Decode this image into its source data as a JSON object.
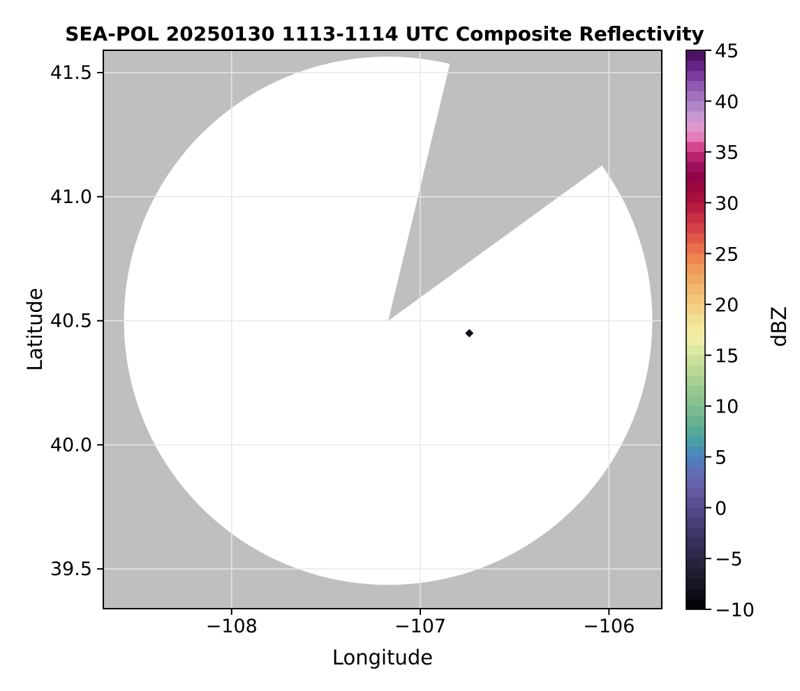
{
  "chart_data": {
    "type": "heatmap",
    "title": "SEA-POL 20250130 1113-1114 UTC Composite Reflectivity",
    "xlabel": "Longitude",
    "ylabel": "Latitude",
    "colorbar_label": "dBZ",
    "xlim": [
      -108.68,
      -105.72
    ],
    "ylim": [
      39.34,
      41.59
    ],
    "grid": true,
    "xticks": [
      {
        "value": -108,
        "label": "−108"
      },
      {
        "value": -107,
        "label": "−107"
      },
      {
        "value": -106,
        "label": "−106"
      }
    ],
    "yticks": [
      {
        "value": 41.5,
        "label": "41.5"
      },
      {
        "value": 41.0,
        "label": "41.0"
      },
      {
        "value": 40.5,
        "label": "40.5"
      },
      {
        "value": 40.0,
        "label": "40.0"
      },
      {
        "value": 39.5,
        "label": "39.5"
      }
    ],
    "colorbar_range": [
      -10,
      45
    ],
    "colorbar_ticks": [
      {
        "value": 45,
        "label": "45"
      },
      {
        "value": 40,
        "label": "40"
      },
      {
        "value": 35,
        "label": "35"
      },
      {
        "value": 30,
        "label": "30"
      },
      {
        "value": 25,
        "label": "25"
      },
      {
        "value": 20,
        "label": "20"
      },
      {
        "value": 15,
        "label": "15"
      },
      {
        "value": 10,
        "label": "10"
      },
      {
        "value": 5,
        "label": "5"
      },
      {
        "value": 0,
        "label": "0"
      },
      {
        "value": -5,
        "label": "−5"
      },
      {
        "value": -10,
        "label": "−10"
      }
    ],
    "radar": {
      "name": "SEA-POL",
      "center_lon": -107.17,
      "center_lat": 40.5,
      "range_deg_lon": 1.4,
      "no_data_sector_azimuth_deg": [
        13.5,
        54
      ]
    },
    "echoes": [
      {
        "lon": -106.74,
        "lat": 40.45,
        "dbz": -9
      }
    ],
    "colors": {
      "no_data_gray": "#bfbfbf",
      "coverage_white": "#ffffff",
      "gridline": "#e7e7e7",
      "spine": "#000000"
    },
    "colormap_name": "spectral-chase-style",
    "colormap_stops": [
      [
        -10,
        "#000000"
      ],
      [
        -9,
        "#0b0812"
      ],
      [
        -8,
        "#140f1e"
      ],
      [
        -7,
        "#1d1829"
      ],
      [
        -6,
        "#251f38"
      ],
      [
        -5,
        "#2c2545"
      ],
      [
        -4,
        "#342c55"
      ],
      [
        -3,
        "#3b3263"
      ],
      [
        -2,
        "#423a6e"
      ],
      [
        -1,
        "#4b4280"
      ],
      [
        0,
        "#544a8c"
      ],
      [
        1,
        "#5e5399"
      ],
      [
        2,
        "#655ea7"
      ],
      [
        3,
        "#6367b1"
      ],
      [
        4,
        "#5a73b9"
      ],
      [
        5,
        "#4a82bd"
      ],
      [
        6,
        "#4795b2"
      ],
      [
        7,
        "#4fa69c"
      ],
      [
        8,
        "#5fae94"
      ],
      [
        9,
        "#6fb691"
      ],
      [
        10,
        "#80bf90"
      ],
      [
        11,
        "#8fc590"
      ],
      [
        12,
        "#9ecb8f"
      ],
      [
        13,
        "#b2d494"
      ],
      [
        14,
        "#c4de97"
      ],
      [
        15,
        "#cfe39c"
      ],
      [
        16,
        "#e9efa9"
      ],
      [
        17,
        "#f4eda6"
      ],
      [
        18,
        "#f3e49a"
      ],
      [
        19,
        "#f3d98d"
      ],
      [
        20,
        "#f3cc80"
      ],
      [
        21,
        "#f2bf72"
      ],
      [
        22,
        "#f0b269"
      ],
      [
        23,
        "#efa15e"
      ],
      [
        24,
        "#ee9055"
      ],
      [
        25,
        "#ed7a4c"
      ],
      [
        26,
        "#e56549"
      ],
      [
        27,
        "#d84a47"
      ],
      [
        28,
        "#cd3545"
      ],
      [
        29,
        "#c02440"
      ],
      [
        30,
        "#af153d"
      ],
      [
        31,
        "#a30b3e"
      ],
      [
        32,
        "#95053f"
      ],
      [
        33,
        "#8f0350"
      ],
      [
        34,
        "#a81b68"
      ],
      [
        35,
        "#c32472"
      ],
      [
        36,
        "#e567ae"
      ],
      [
        37,
        "#e592c8"
      ],
      [
        38,
        "#d89cd3"
      ],
      [
        39,
        "#b890cf"
      ],
      [
        40,
        "#a77cc2"
      ],
      [
        41,
        "#9c64b5"
      ],
      [
        42,
        "#8549a6"
      ],
      [
        43,
        "#6f2f92"
      ],
      [
        44,
        "#5a1a75"
      ],
      [
        45,
        "#3f0a50"
      ]
    ]
  }
}
